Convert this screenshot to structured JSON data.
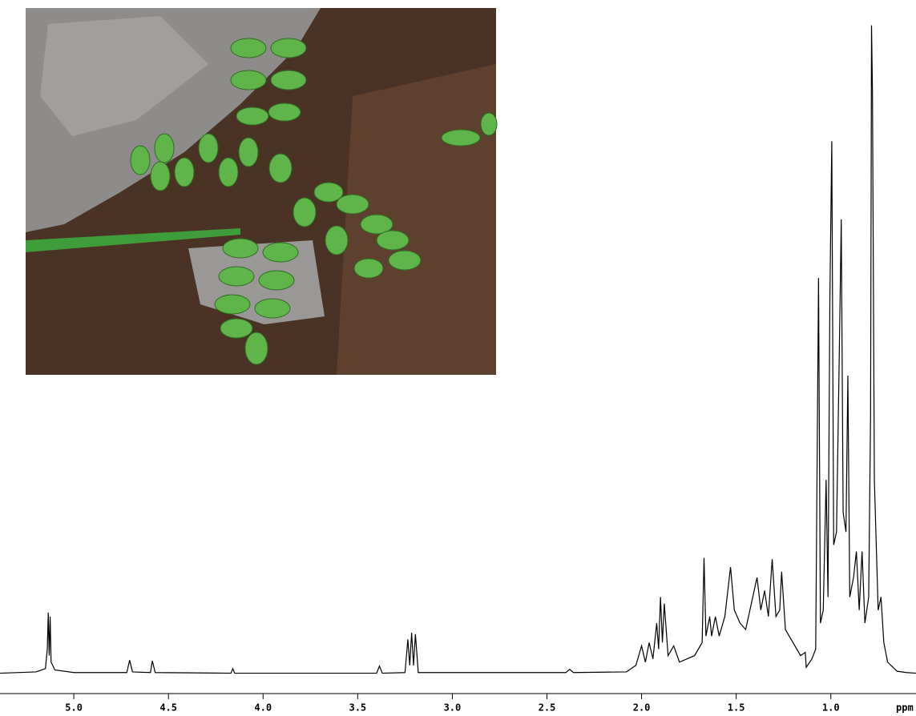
{
  "chart_data": {
    "type": "line",
    "xlabel": "ppm",
    "color": "#000000",
    "x": [
      5.39,
      5.2,
      5.15,
      5.14,
      5.135,
      5.13,
      5.125,
      5.12,
      5.1,
      5.0,
      4.72,
      4.705,
      4.69,
      4.595,
      4.585,
      4.57,
      4.17,
      4.16,
      4.15,
      3.4,
      3.385,
      3.37,
      3.25,
      3.235,
      3.225,
      3.215,
      3.205,
      3.195,
      3.18,
      2.4,
      2.38,
      2.36,
      2.08,
      2.03,
      2.0,
      1.98,
      1.96,
      1.94,
      1.92,
      1.91,
      1.9,
      1.89,
      1.88,
      1.86,
      1.83,
      1.8,
      1.72,
      1.68,
      1.67,
      1.66,
      1.64,
      1.63,
      1.61,
      1.59,
      1.56,
      1.53,
      1.51,
      1.48,
      1.45,
      1.42,
      1.39,
      1.37,
      1.35,
      1.33,
      1.31,
      1.29,
      1.27,
      1.26,
      1.24,
      1.2,
      1.16,
      1.135,
      1.13,
      1.1,
      1.08,
      1.065,
      1.055,
      1.04,
      1.025,
      1.015,
      1.005,
      0.995,
      0.985,
      0.97,
      0.955,
      0.945,
      0.935,
      0.92,
      0.91,
      0.9,
      0.88,
      0.865,
      0.85,
      0.835,
      0.82,
      0.8,
      0.79,
      0.785,
      0.78,
      0.77,
      0.75,
      0.735,
      0.72,
      0.7,
      0.65,
      0.6,
      0.55
    ],
    "values": [
      0.3,
      0.5,
      1,
      4,
      9.6,
      3,
      9,
      2,
      0.8,
      0.4,
      0.4,
      2.3,
      0.5,
      0.4,
      2.2,
      0.4,
      0.3,
      1,
      0.3,
      0.3,
      1.4,
      0.3,
      0.4,
      5.5,
      1.5,
      6.5,
      1.5,
      6.3,
      0.4,
      0.4,
      0.9,
      0.4,
      0.5,
      1.5,
      4.5,
      2,
      5,
      2.5,
      8,
      4,
      12,
      5,
      11,
      3,
      4.5,
      2,
      3,
      5,
      18,
      6,
      9,
      6,
      9,
      6,
      9,
      16.6,
      10,
      8,
      7,
      11,
      15,
      10,
      13,
      9,
      17.8,
      9,
      10,
      15.9,
      7,
      5,
      3,
      3.5,
      1.2,
      2.5,
      4,
      61,
      8,
      10,
      30,
      12,
      58,
      82,
      20,
      22,
      50,
      70,
      25,
      22,
      46,
      12,
      15,
      19,
      10,
      19,
      8,
      12,
      40,
      99.8,
      89.5,
      30,
      10,
      12,
      5,
      2,
      0.6,
      0.4,
      0.3
    ],
    "xlim": [
      5.39,
      0.55
    ],
    "ylim": [
      0,
      100
    ],
    "xticks": [
      {
        "value": 5,
        "label": "5.0"
      },
      {
        "value": 4.5,
        "label": "4.5"
      },
      {
        "value": 4,
        "label": "4.0"
      },
      {
        "value": 3.5,
        "label": "3.5"
      },
      {
        "value": 3,
        "label": "3.0"
      },
      {
        "value": 2.5,
        "label": "2.5"
      },
      {
        "value": 2,
        "label": "2.0"
      },
      {
        "value": 1.5,
        "label": "1.5"
      },
      {
        "value": 1,
        "label": "1.0"
      }
    ]
  }
}
